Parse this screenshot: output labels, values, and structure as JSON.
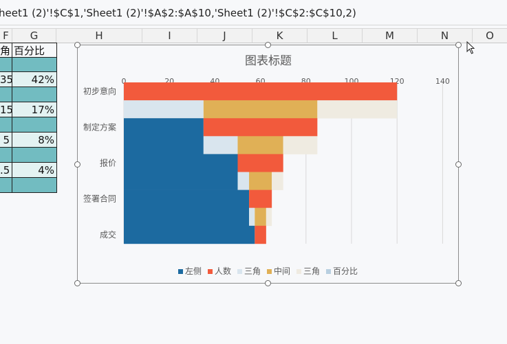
{
  "formula": "heet1 (2)'!$C$1,'Sheet1 (2)'!$A$2:$A$10,'Sheet1 (2)'!$C$2:$C$10,2)",
  "columns": [
    "F",
    "G",
    "H",
    "I",
    "J",
    "K",
    "L",
    "M",
    "N",
    "O"
  ],
  "cells": {
    "f1": "角",
    "g1": "百分比",
    "f3": "35",
    "g3": "42%",
    "f5": "15",
    "g5": "17%",
    "f7": "5",
    "g7": "8%",
    "f9": ".5",
    "g9": "4%"
  },
  "colors": {
    "left": "#1c6aa0",
    "people": "#f25a3c",
    "triangle1": "#d9e5ee",
    "middle": "#e0b056",
    "triangle2": "#efebe1",
    "percent": "#b8cfe0",
    "teal": "#72bcc1",
    "light": "#e3f2f2"
  },
  "chart_data": {
    "type": "bar",
    "orientation": "horizontal",
    "stacked": true,
    "title": "图表标题",
    "categories": [
      "初步意向",
      "制定方案",
      "报价",
      "签署合同",
      "成交"
    ],
    "xlim": [
      0,
      140
    ],
    "xticks": [
      0,
      20,
      40,
      60,
      80,
      100,
      120,
      140
    ],
    "grid": true,
    "legend_position": "bottom",
    "rows": [
      {
        "left": 0,
        "people": 120,
        "triangle1": 0,
        "middle": 0,
        "triangle2": 0
      },
      {
        "left": 0,
        "people": 0,
        "triangle1": 35,
        "middle": 50,
        "triangle2": 35
      },
      {
        "left": 35,
        "people": 50,
        "triangle1": 0,
        "middle": 0,
        "triangle2": 0
      },
      {
        "left": 35,
        "people": 0,
        "triangle1": 15,
        "middle": 20,
        "triangle2": 15
      },
      {
        "left": 50,
        "people": 20,
        "triangle1": 0,
        "middle": 0,
        "triangle2": 0
      },
      {
        "left": 50,
        "people": 0,
        "triangle1": 5,
        "middle": 10,
        "triangle2": 5
      },
      {
        "left": 55,
        "people": 10,
        "triangle1": 0,
        "middle": 0,
        "triangle2": 0
      },
      {
        "left": 55,
        "people": 0,
        "triangle1": 2.5,
        "middle": 5,
        "triangle2": 2.5
      },
      {
        "left": 57.5,
        "people": 5,
        "triangle1": 0,
        "middle": 0,
        "triangle2": 0
      }
    ],
    "series": [
      {
        "key": "left",
        "name": "左侧"
      },
      {
        "key": "people",
        "name": "人数"
      },
      {
        "key": "triangle1",
        "name": "三角"
      },
      {
        "key": "middle",
        "name": "中间"
      },
      {
        "key": "triangle2",
        "name": "三角"
      },
      {
        "key": "percent",
        "name": "百分比"
      }
    ]
  }
}
